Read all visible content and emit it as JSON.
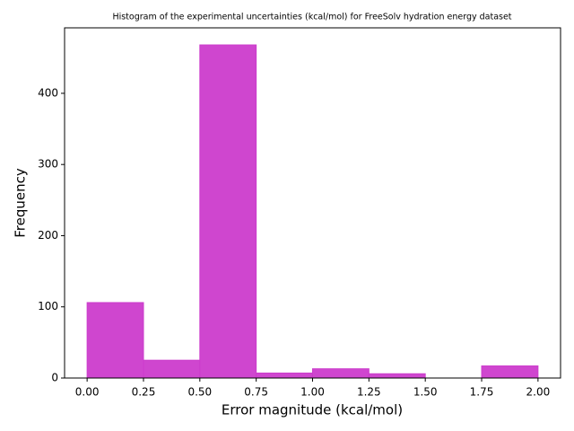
{
  "chart_data": {
    "type": "histogram",
    "title": "Histogram of the experimental uncertainties (kcal/mol) for FreeSolv hydration energy dataset",
    "x_label": "Error magnitude (kcal/mol)",
    "y_label": "Frequency",
    "bins": [
      0,
      0.25,
      0.5,
      0.75,
      1.0,
      1.25,
      1.5,
      1.75,
      2.0
    ],
    "values": [
      106,
      25,
      468,
      7,
      13,
      6,
      0,
      17
    ],
    "color": "#cc3ccc",
    "xlim": [
      -0.1,
      2.1
    ],
    "ylim": [
      0,
      492
    ],
    "xticks": [
      {
        "value": 0,
        "label": "0.00"
      },
      {
        "value": 0.25,
        "label": "0.25"
      },
      {
        "value": 0.5,
        "label": "0.50"
      },
      {
        "value": 0.75,
        "label": "0.75"
      },
      {
        "value": 1.0,
        "label": "1.00"
      },
      {
        "value": 1.25,
        "label": "1.25"
      },
      {
        "value": 1.5,
        "label": "1.50"
      },
      {
        "value": 1.75,
        "label": "1.75"
      },
      {
        "value": 2.0,
        "label": "2.00"
      }
    ],
    "yticks": [
      0,
      100,
      200,
      300,
      400
    ]
  }
}
